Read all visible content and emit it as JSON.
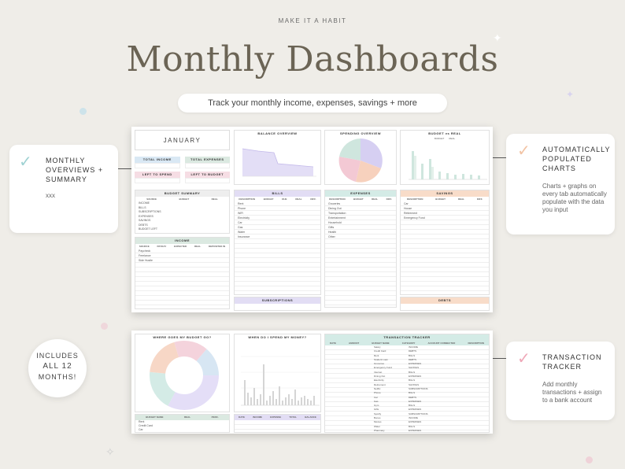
{
  "header": {
    "kicker": "MAKE IT A HABIT",
    "title": "Monthly Dashboards",
    "tagline": "Track your monthly income, expenses, savings + more"
  },
  "cards": {
    "overview": {
      "title": "MONTHLY OVERVIEWS + SUMMARY",
      "note": "xxx"
    },
    "auto": {
      "title": "AUTOMATICALLY POPULATED CHARTS",
      "desc": "Charts + graphs on every tab automatically populate with the data you input"
    },
    "tracker": {
      "title": "TRANSACTION TRACKER",
      "desc": "Add monthly transactions + assign to a bank account"
    },
    "months": {
      "line1": "INCLUDES",
      "line2": "ALL 12",
      "line3": "MONTHS!"
    }
  },
  "sheet1": {
    "month": "JANUARY",
    "total_income": "TOTAL INCOME",
    "total_expenses": "TOTAL EXPENSES",
    "left_to_spend": "LEFT TO SPEND",
    "left_to_budget": "LEFT TO BUDGET",
    "balance_overview": "BALANCE OVERVIEW",
    "spending_overview": "SPENDING OVERVIEW",
    "budget_vs_real": "BUDGET vs REAL",
    "legend_budget": "BUDGET",
    "legend_real": "REAL",
    "budget_summary": "BUDGET SUMMARY",
    "income": "INCOME",
    "bills": "BILLS",
    "expenses": "EXPENSES",
    "savings": "SAVINGS",
    "subscriptions": "SUBSCRIPTIONS",
    "debts": "DEBTS",
    "cols_summary": [
      "SOURCE",
      "BUDGET",
      "REAL"
    ],
    "summary_rows": [
      "INCOME",
      "BILLS",
      "SUBSCRIPTIONS",
      "EXPENSES",
      "SAVINGS",
      "DEBTS",
      "BUDGET LEFT"
    ],
    "cols_income": [
      "SOURCE",
      "PAYDAY",
      "EXPECTED",
      "REAL",
      "DEPOSITED IN"
    ],
    "income_rows": [
      "Paycheck",
      "Freelance",
      "Side Hustle"
    ],
    "cols_bills": [
      "DESCRIPTION",
      "BUDGET",
      "DUE",
      "REAL",
      "DIFF."
    ],
    "bills_rows": [
      "Rent",
      "Phone",
      "WiFi",
      "Electricity",
      "Car",
      "Gas",
      "Water",
      "Insurance"
    ],
    "cols_expenses": [
      "DESCRIPTION",
      "BUDGET",
      "REAL",
      "DIFF."
    ],
    "expense_rows": [
      "Groceries",
      "Dining Out",
      "Transportation",
      "Entertainment",
      "Household",
      "Gifts",
      "Health",
      "Other"
    ],
    "cols_savings": [
      "DESCRIPTION",
      "BUDGET",
      "REAL",
      "DIFF."
    ],
    "savings_rows": [
      "Car",
      "House",
      "Retirement",
      "Emergency Fund"
    ],
    "total": "TOTAL"
  },
  "sheet2": {
    "where_title": "WHERE GOES MY BUDGET GO?",
    "when_title": "WHEN DO I SPEND MY MONEY?",
    "tracker_title": "TRANSACTION TRACKER",
    "budget_cols": [
      "BUDGET NAME",
      "REAL",
      "PERC."
    ],
    "budget_rows": [
      "Rent",
      "Credit Card",
      "Car"
    ],
    "when_cols": [
      "DATE",
      "INCOME",
      "EXPENSE",
      "TOTAL",
      "BALANCE"
    ],
    "tracker_cols": [
      "DATE",
      "AMOUNT",
      "BUDGET NAME",
      "CATEGORY",
      "ACCOUNT CONNECTED",
      "DESCRIPTION"
    ],
    "tracker_rows": [
      {
        "budget": "Salary",
        "category": "INCOME"
      },
      {
        "budget": "Credit Card",
        "category": "DEBTS"
      },
      {
        "budget": "Rent",
        "category": "BILLS"
      },
      {
        "budget": "Student Loan",
        "category": "DEBTS"
      },
      {
        "budget": "Groceries",
        "category": "EXPENSES"
      },
      {
        "budget": "Emergency Fund",
        "category": "SAVINGS"
      },
      {
        "budget": "Internet",
        "category": "BILLS"
      },
      {
        "budget": "Dining Out",
        "category": "EXPENSES"
      },
      {
        "budget": "Electricity",
        "category": "BILLS"
      },
      {
        "budget": "Retirement",
        "category": "SAVINGS"
      },
      {
        "budget": "Netflix",
        "category": "SUBSCRIPTIONS"
      },
      {
        "budget": "Phone",
        "category": "BILLS"
      },
      {
        "budget": "Car",
        "category": "DEBTS"
      },
      {
        "budget": "Gas",
        "category": "EXPENSES"
      },
      {
        "budget": "Gym",
        "category": "BILLS"
      },
      {
        "budget": "Gifts",
        "category": "EXPENSES"
      },
      {
        "budget": "Spotify",
        "category": "SUBSCRIPTIONS"
      },
      {
        "budget": "Bonus",
        "category": "INCOME"
      },
      {
        "budget": "Movies",
        "category": "EXPENSES"
      },
      {
        "budget": "Water",
        "category": "BILLS"
      },
      {
        "budget": "Pharmacy",
        "category": "EXPENSES"
      }
    ]
  },
  "colors": {
    "green": "#dbe9e1",
    "blue": "#d9e8f4",
    "pink": "#f6dde4",
    "purple": "#e2ddf4",
    "teal": "#d4ebe6",
    "peach": "#f8dcc9",
    "check_green": "#9fd2d3",
    "check_pink": "#efa8b8",
    "check_peach": "#f2c3a4"
  }
}
